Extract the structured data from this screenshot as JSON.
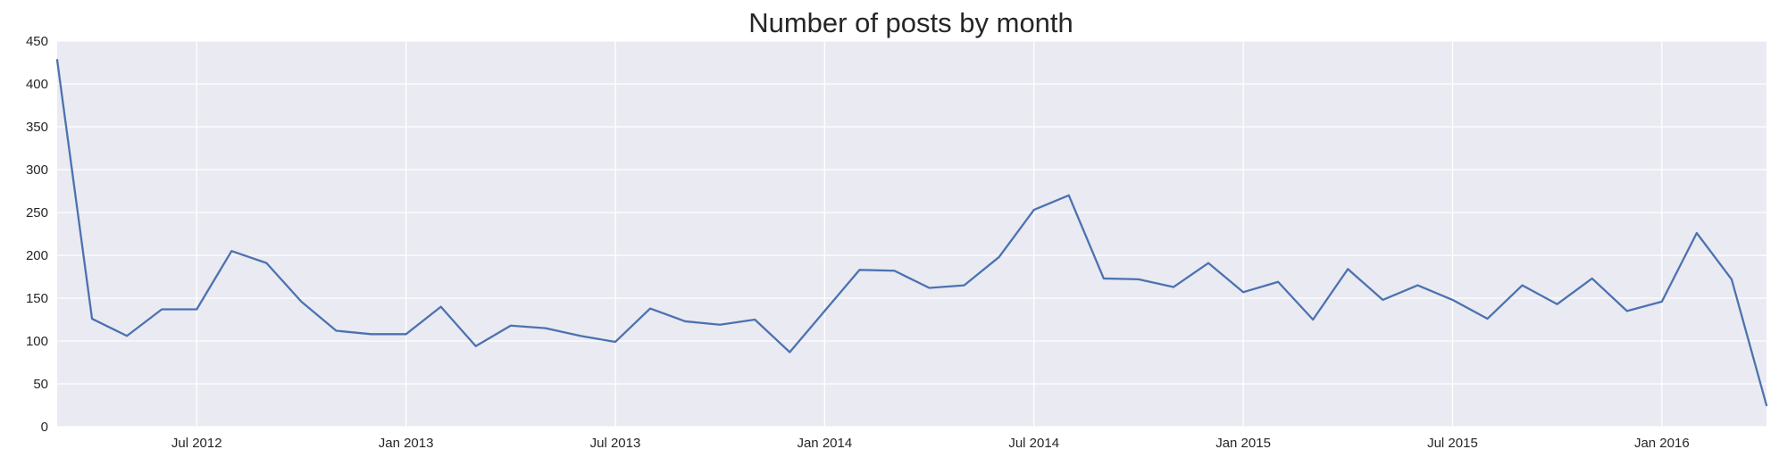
{
  "chart_data": {
    "type": "line",
    "title": "Number of posts by month",
    "xlabel": "",
    "ylabel": "",
    "grid": true,
    "legend": "none",
    "xlim": [
      "2012-03",
      "2016-04"
    ],
    "ylim": [
      0,
      450
    ],
    "y_ticks": [
      0,
      50,
      100,
      150,
      200,
      250,
      300,
      350,
      400,
      450
    ],
    "x_ticks": [
      {
        "date": "2012-07",
        "label": "Jul 2012"
      },
      {
        "date": "2013-01",
        "label": "Jan 2013"
      },
      {
        "date": "2013-07",
        "label": "Jul 2013"
      },
      {
        "date": "2014-01",
        "label": "Jan 2014"
      },
      {
        "date": "2014-07",
        "label": "Jul 2014"
      },
      {
        "date": "2015-01",
        "label": "Jan 2015"
      },
      {
        "date": "2015-07",
        "label": "Jul 2015"
      },
      {
        "date": "2016-01",
        "label": "Jan 2016"
      }
    ],
    "colors": {
      "line": "#4c72b0",
      "plot_background": "#eaeaf2",
      "grid": "#ffffff",
      "text": "#262626"
    },
    "series": [
      {
        "x": [
          "2012-03",
          "2012-04",
          "2012-05",
          "2012-06",
          "2012-07",
          "2012-08",
          "2012-09",
          "2012-10",
          "2012-11",
          "2012-12",
          "2013-01",
          "2013-02",
          "2013-03",
          "2013-04",
          "2013-05",
          "2013-06",
          "2013-07",
          "2013-08",
          "2013-09",
          "2013-10",
          "2013-11",
          "2013-12",
          "2014-01",
          "2014-02",
          "2014-03",
          "2014-04",
          "2014-05",
          "2014-06",
          "2014-07",
          "2014-08",
          "2014-09",
          "2014-10",
          "2014-11",
          "2014-12",
          "2015-01",
          "2015-02",
          "2015-03",
          "2015-04",
          "2015-05",
          "2015-06",
          "2015-07",
          "2015-08",
          "2015-09",
          "2015-10",
          "2015-11",
          "2015-12",
          "2016-01",
          "2016-02",
          "2016-03",
          "2016-04"
        ],
        "y": [
          428,
          126,
          106,
          137,
          137,
          205,
          191,
          146,
          112,
          108,
          108,
          140,
          94,
          118,
          115,
          106,
          99,
          138,
          123,
          119,
          125,
          87,
          135,
          183,
          182,
          162,
          165,
          198,
          253,
          270,
          173,
          172,
          163,
          191,
          157,
          169,
          125,
          184,
          148,
          165,
          148,
          126,
          165,
          143,
          173,
          135,
          146,
          226,
          172,
          25
        ]
      }
    ]
  }
}
